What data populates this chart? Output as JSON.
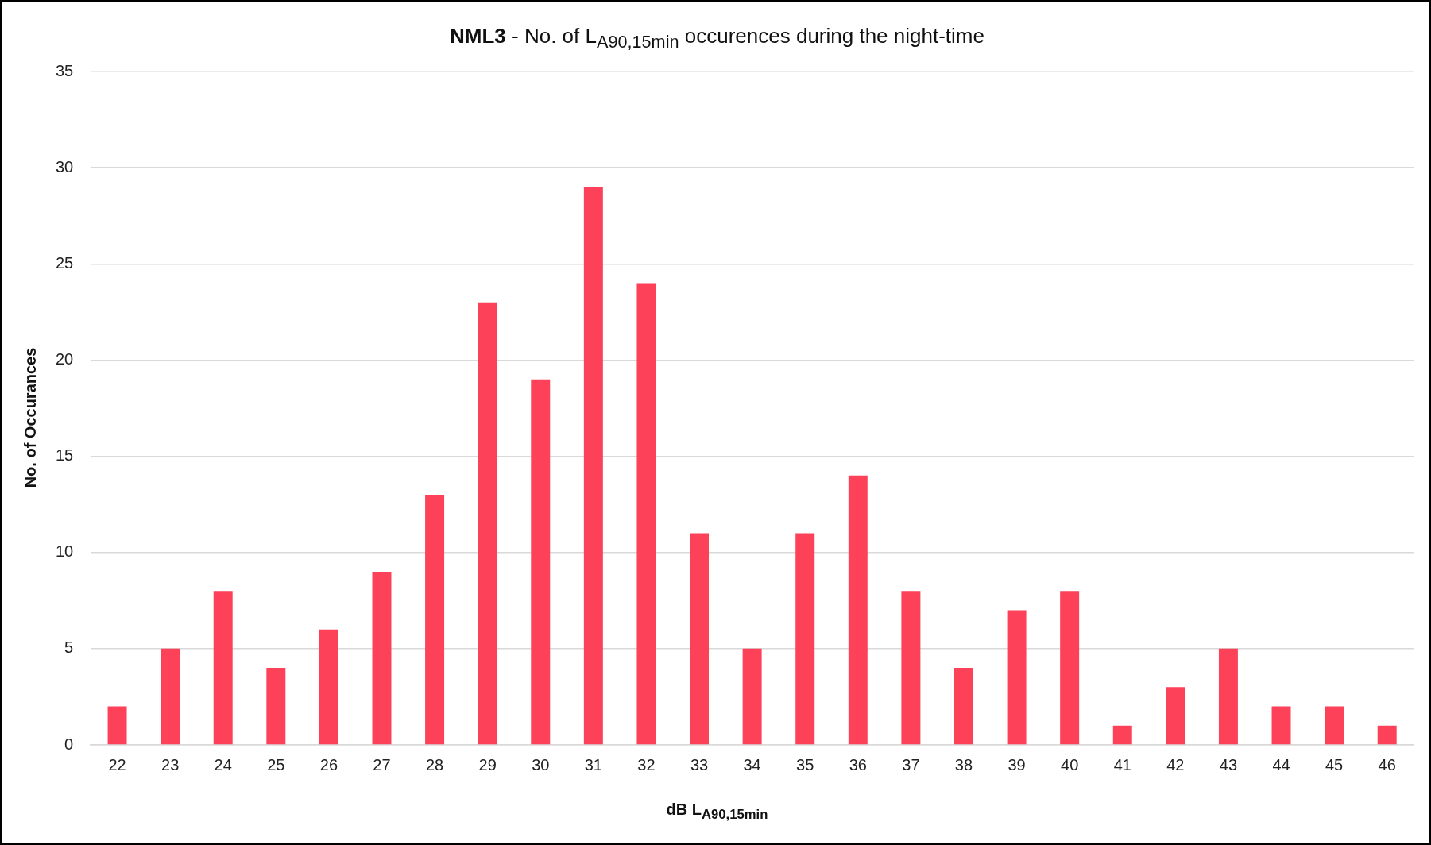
{
  "chart_data": {
    "type": "bar",
    "title": "NML3 - No. of L$_{A90,15min}$ occurences during the night-time",
    "xlabel": "dB L$_{A90,15min}$",
    "ylabel": "No. of Occurances",
    "categories": [
      "22",
      "23",
      "24",
      "25",
      "26",
      "27",
      "28",
      "29",
      "30",
      "31",
      "32",
      "33",
      "34",
      "35",
      "36",
      "37",
      "38",
      "39",
      "40",
      "41",
      "42",
      "43",
      "44",
      "45",
      "46"
    ],
    "values": [
      2,
      5,
      8,
      4,
      6,
      9,
      13,
      23,
      19,
      29,
      24,
      11,
      5,
      11,
      14,
      8,
      4,
      7,
      8,
      1,
      3,
      5,
      2,
      2,
      1
    ],
    "color": "#fc4159",
    "ylim": [
      0,
      35
    ],
    "yticks": [
      0,
      5,
      10,
      15,
      20,
      25,
      30,
      35
    ],
    "grid": "y"
  }
}
